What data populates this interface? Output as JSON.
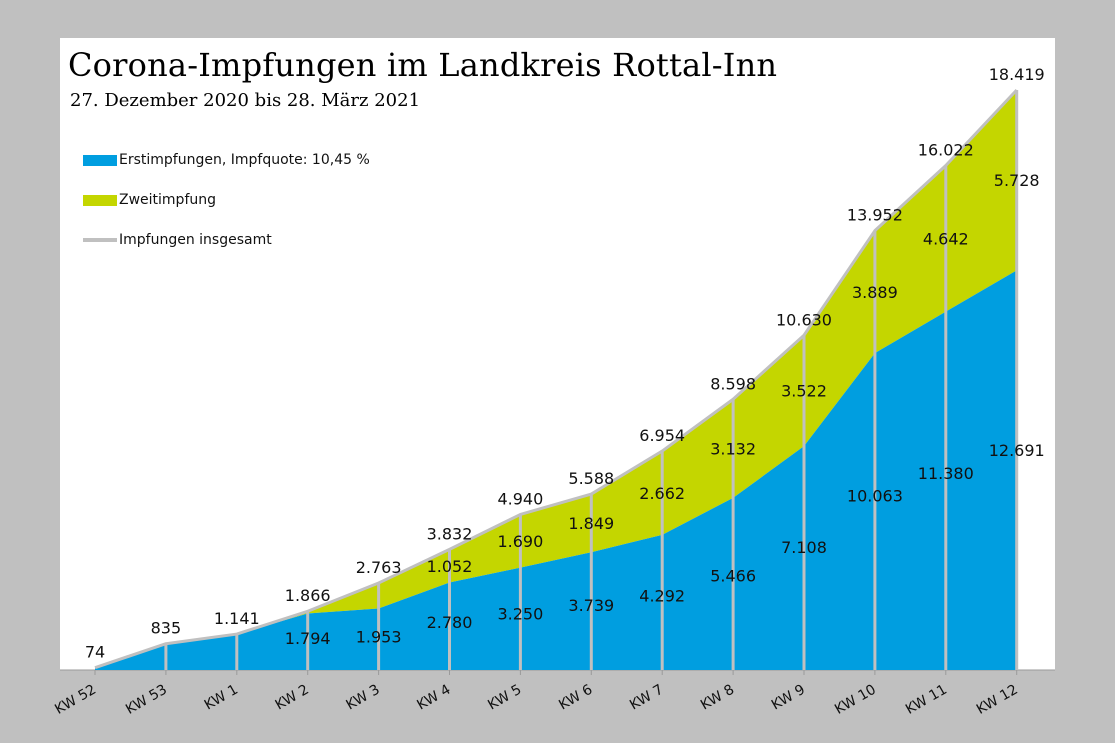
{
  "chart_data": {
    "type": "area",
    "title": "Corona-Impfungen im Landkreis Rottal-Inn",
    "subtitle": "27. Dezember 2020 bis 28. März 2021",
    "categories": [
      "KW 52",
      "KW 53",
      "KW 1",
      "KW 2",
      "KW 3",
      "KW 4",
      "KW 5",
      "KW 6",
      "KW 7",
      "KW 8",
      "KW 9",
      "KW 10",
      "KW 11",
      "KW 12"
    ],
    "series": [
      {
        "name": "Erstimpfungen, Impfquote: 10,45 %",
        "color": "#009ee0",
        "values": [
          74,
          835,
          1141,
          1794,
          1953,
          2780,
          3250,
          3739,
          4292,
          5466,
          7108,
          10063,
          11380,
          12691
        ],
        "labels": [
          "",
          "",
          "",
          "1.794",
          "1.953",
          "2.780",
          "3.250",
          "3.739",
          "4.292",
          "5.466",
          "7.108",
          "10.063",
          "11.380",
          "12.691"
        ]
      },
      {
        "name": "Zweitimpfung",
        "color": "#c4d600",
        "values": [
          0,
          0,
          0,
          72,
          810,
          1052,
          1690,
          1849,
          2662,
          3132,
          3522,
          3889,
          4642,
          5728
        ],
        "labels": [
          "",
          "",
          "",
          "",
          "",
          "1.052",
          "1.690",
          "1.849",
          "2.662",
          "3.132",
          "3.522",
          "3.889",
          "4.642",
          "5.728"
        ]
      },
      {
        "name": "Impfungen insgesamt",
        "color": "#c0c0c0",
        "values": [
          74,
          835,
          1141,
          1866,
          2763,
          3832,
          4940,
          5588,
          6954,
          8598,
          10630,
          13952,
          16022,
          18419
        ],
        "labels": [
          "74",
          "835",
          "1.141",
          "1.866",
          "2.763",
          "3.832",
          "4.940",
          "5.588",
          "6.954",
          "8.598",
          "10.630",
          "13.952",
          "16.022",
          "18.419"
        ]
      }
    ],
    "ylim": [
      0,
      18419
    ],
    "grid": false,
    "legend_position": "top-left"
  }
}
